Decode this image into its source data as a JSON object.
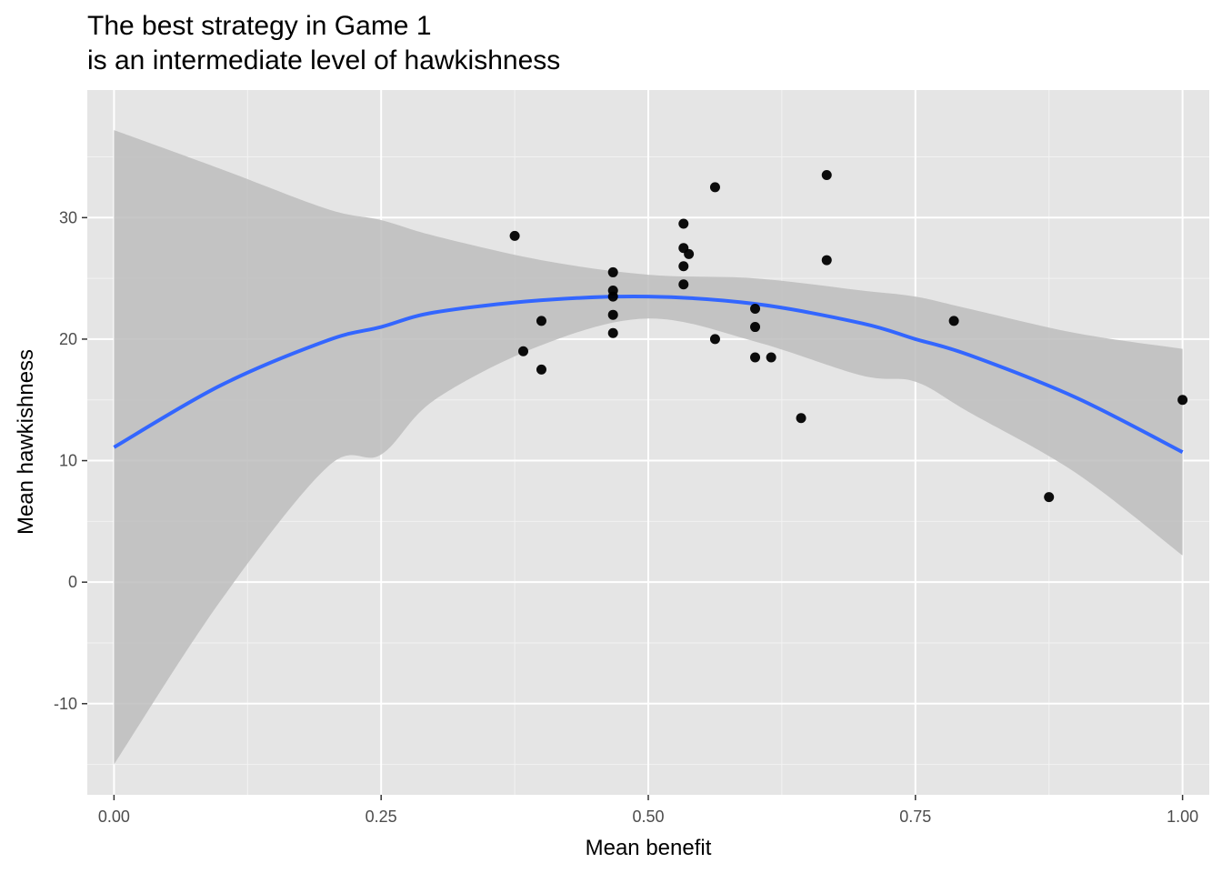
{
  "chart_data": {
    "type": "scatter",
    "title": "The best strategy in Game 1",
    "subtitle": "is an intermediate level of hawkishness",
    "xlabel": "Mean benefit",
    "ylabel": "Mean hawkishness",
    "xlim": [
      -0.025,
      1.025
    ],
    "ylim": [
      -17.5,
      40.5
    ],
    "xticks": [
      0.0,
      0.25,
      0.5,
      0.75,
      1.0
    ],
    "xtick_labels": [
      "0.00",
      "0.25",
      "0.50",
      "0.75",
      "1.00"
    ],
    "yticks": [
      -10,
      0,
      10,
      20,
      30
    ],
    "ytick_labels": [
      "-10",
      "0",
      "10",
      "20",
      "30"
    ],
    "grid": true,
    "points": [
      {
        "x": 0.375,
        "y": 28.5
      },
      {
        "x": 0.383,
        "y": 19.0
      },
      {
        "x": 0.4,
        "y": 21.5
      },
      {
        "x": 0.4,
        "y": 17.5
      },
      {
        "x": 0.467,
        "y": 25.5
      },
      {
        "x": 0.467,
        "y": 24.0
      },
      {
        "x": 0.467,
        "y": 23.5
      },
      {
        "x": 0.467,
        "y": 22.0
      },
      {
        "x": 0.467,
        "y": 20.5
      },
      {
        "x": 0.533,
        "y": 29.5
      },
      {
        "x": 0.533,
        "y": 27.5
      },
      {
        "x": 0.533,
        "y": 26.0
      },
      {
        "x": 0.533,
        "y": 24.5
      },
      {
        "x": 0.538,
        "y": 27.0
      },
      {
        "x": 0.5625,
        "y": 32.5
      },
      {
        "x": 0.5625,
        "y": 20.0
      },
      {
        "x": 0.6,
        "y": 22.5
      },
      {
        "x": 0.6,
        "y": 21.0
      },
      {
        "x": 0.6,
        "y": 18.5
      },
      {
        "x": 0.615,
        "y": 18.5
      },
      {
        "x": 0.643,
        "y": 13.5
      },
      {
        "x": 0.667,
        "y": 33.5
      },
      {
        "x": 0.667,
        "y": 26.5
      },
      {
        "x": 0.786,
        "y": 21.5
      },
      {
        "x": 0.875,
        "y": 7.0
      },
      {
        "x": 1.0,
        "y": 15.0
      }
    ],
    "fit": {
      "method": "quadratic",
      "x": [
        0.0,
        0.1,
        0.2,
        0.25,
        0.3,
        0.4,
        0.5,
        0.6,
        0.7,
        0.75,
        0.8,
        0.9,
        1.0
      ],
      "y": [
        11.1,
        16.2,
        19.9,
        21.0,
        22.2,
        23.2,
        23.5,
        22.9,
        21.3,
        20.0,
        18.7,
        15.2,
        10.7
      ],
      "ci_lower": [
        -15.0,
        -1.5,
        9.5,
        10.5,
        15.0,
        19.5,
        21.7,
        19.8,
        17.0,
        16.5,
        14.0,
        9.0,
        2.2
      ],
      "ci_upper": [
        37.2,
        34.0,
        30.7,
        29.8,
        28.5,
        26.5,
        25.3,
        25.0,
        24.0,
        23.5,
        22.5,
        20.5,
        19.2
      ]
    },
    "colors": {
      "panel_background": "#e5e5e5",
      "grid_major": "#ffffff",
      "grid_minor": "#f2f2f2",
      "ribbon": "#bdbdbd",
      "fit_line": "#3366ff",
      "points": "#000000",
      "tick_text": "#4d4d4d"
    }
  }
}
